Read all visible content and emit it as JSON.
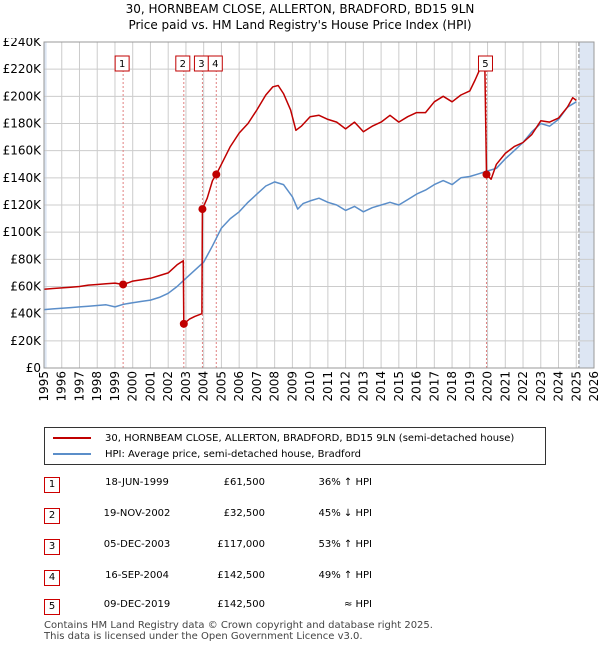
{
  "title_line1": "30, HORNBEAM CLOSE, ALLERTON, BRADFORD, BD15 9LN",
  "title_line2": "Price paid vs. HM Land Registry's House Price Index (HPI)",
  "legend": {
    "property": "30, HORNBEAM CLOSE, ALLERTON, BRADFORD, BD15 9LN (semi-detached house)",
    "hpi": "HPI: Average price, semi-detached house, Bradford"
  },
  "colors": {
    "property": "#c00000",
    "hpi": "#5b8ec9",
    "shade": "#dde6f3",
    "grid": "#cccccc",
    "vline": "#e08080"
  },
  "sales": [
    {
      "n": "1",
      "date": "18-JUN-1999",
      "price": "£61,500",
      "hpi": "36% ↑ HPI"
    },
    {
      "n": "2",
      "date": "19-NOV-2002",
      "price": "£32,500",
      "hpi": "45% ↓ HPI"
    },
    {
      "n": "3",
      "date": "05-DEC-2003",
      "price": "£117,000",
      "hpi": "53% ↑ HPI"
    },
    {
      "n": "4",
      "date": "16-SEP-2004",
      "price": "£142,500",
      "hpi": "49% ↑ HPI"
    },
    {
      "n": "5",
      "date": "09-DEC-2019",
      "price": "£142,500",
      "hpi": "≈ HPI"
    }
  ],
  "footer": {
    "line1": "Contains HM Land Registry data © Crown copyright and database right 2025.",
    "line2": "This data is licensed under the Open Government Licence v3.0."
  },
  "chart_data": {
    "type": "line",
    "xlim": [
      1995,
      2026
    ],
    "ylim": [
      0,
      240000
    ],
    "yticks": [
      0,
      20000,
      40000,
      60000,
      80000,
      100000,
      120000,
      140000,
      160000,
      180000,
      200000,
      220000,
      240000
    ],
    "ytick_labels": [
      "£0",
      "£20K",
      "£40K",
      "£60K",
      "£80K",
      "£100K",
      "£120K",
      "£140K",
      "£160K",
      "£180K",
      "£200K",
      "£220K",
      "£240K"
    ],
    "xticks": [
      1995,
      1996,
      1997,
      1998,
      1999,
      2000,
      2001,
      2002,
      2003,
      2004,
      2005,
      2006,
      2007,
      2008,
      2009,
      2010,
      2011,
      2012,
      2013,
      2014,
      2015,
      2016,
      2017,
      2018,
      2019,
      2020,
      2021,
      2022,
      2023,
      2024,
      2025,
      2026
    ],
    "shaded_ranges": [
      [
        1995,
        1995.15
      ],
      [
        2025.15,
        2026
      ]
    ],
    "sale_markers": [
      {
        "label": "1",
        "x": 1999.46,
        "y": 61500
      },
      {
        "label": "2",
        "x": 2002.88,
        "y": 32500
      },
      {
        "label": "3",
        "x": 2003.93,
        "y": 117000
      },
      {
        "label": "4",
        "x": 2004.71,
        "y": 142500
      },
      {
        "label": "5",
        "x": 2019.94,
        "y": 142500
      }
    ],
    "series": [
      {
        "name": "30, HORNBEAM CLOSE, ALLERTON, BRADFORD, BD15 9LN (semi-detached house)",
        "x": [
          1995,
          1995.5,
          1996,
          1996.5,
          1997,
          1997.5,
          1998,
          1998.5,
          1999,
          1999.46,
          1999.8,
          2000,
          2000.5,
          2001,
          2001.5,
          2002,
          2002.5,
          2002.85,
          2002.88,
          2003.2,
          2003.5,
          2003.9,
          2003.93,
          2004.2,
          2004.5,
          2004.71,
          2005,
          2005.5,
          2006,
          2006.5,
          2007,
          2007.5,
          2007.9,
          2008.2,
          2008.5,
          2008.9,
          2009.2,
          2009.5,
          2010,
          2010.5,
          2011,
          2011.5,
          2012,
          2012.5,
          2013,
          2013.5,
          2014,
          2014.5,
          2015,
          2015.5,
          2016,
          2016.5,
          2017,
          2017.5,
          2018,
          2018.5,
          2019,
          2019.3,
          2019.6,
          2019.85,
          2019.94,
          2020.2,
          2020.5,
          2021,
          2021.5,
          2022,
          2022.5,
          2023,
          2023.5,
          2024,
          2024.5,
          2024.8,
          2025
        ],
        "values": [
          58000,
          58500,
          59000,
          59500,
          60000,
          61000,
          61500,
          62000,
          62500,
          61500,
          63000,
          64000,
          65000,
          66000,
          68000,
          70000,
          76000,
          79000,
          32500,
          36000,
          38000,
          40000,
          117000,
          125000,
          138000,
          142500,
          150000,
          163000,
          173000,
          180000,
          190000,
          201000,
          207000,
          208000,
          202000,
          190000,
          175000,
          178000,
          185000,
          186000,
          183000,
          181000,
          176000,
          181000,
          174000,
          178000,
          181000,
          186000,
          181000,
          185000,
          188000,
          188000,
          196000,
          200000,
          196000,
          201000,
          204000,
          212000,
          221000,
          219000,
          142500,
          139000,
          150000,
          158000,
          163000,
          166000,
          172000,
          182000,
          181000,
          184000,
          192000,
          199000,
          197000
        ]
      },
      {
        "name": "HPI: Average price, semi-detached house, Bradford",
        "x": [
          1995,
          1995.5,
          1996,
          1996.5,
          1997,
          1997.5,
          1998,
          1998.5,
          1999,
          1999.5,
          2000,
          2000.5,
          2001,
          2001.5,
          2002,
          2002.5,
          2003,
          2003.5,
          2004,
          2004.5,
          2005,
          2005.5,
          2006,
          2006.5,
          2007,
          2007.5,
          2008,
          2008.5,
          2009,
          2009.3,
          2009.6,
          2010,
          2010.5,
          2011,
          2011.5,
          2012,
          2012.5,
          2013,
          2013.5,
          2014,
          2014.5,
          2015,
          2015.5,
          2016,
          2016.5,
          2017,
          2017.5,
          2018,
          2018.5,
          2019,
          2019.5,
          2020,
          2020.5,
          2021,
          2021.5,
          2022,
          2022.5,
          2023,
          2023.5,
          2024,
          2024.5,
          2025
        ],
        "values": [
          43000,
          43500,
          44000,
          44500,
          45000,
          45500,
          46000,
          46500,
          45000,
          47000,
          48000,
          49000,
          50000,
          52000,
          55000,
          60000,
          66000,
          72000,
          78000,
          90000,
          103000,
          110000,
          115000,
          122000,
          128000,
          134000,
          137000,
          135000,
          126000,
          117000,
          121000,
          123000,
          125000,
          122000,
          120000,
          116000,
          119000,
          115000,
          118000,
          120000,
          122000,
          120000,
          124000,
          128000,
          131000,
          135000,
          138000,
          135000,
          140000,
          141000,
          143000,
          145000,
          147000,
          154000,
          160000,
          166000,
          174000,
          180000,
          178000,
          183000,
          192000,
          196000
        ]
      }
    ]
  }
}
